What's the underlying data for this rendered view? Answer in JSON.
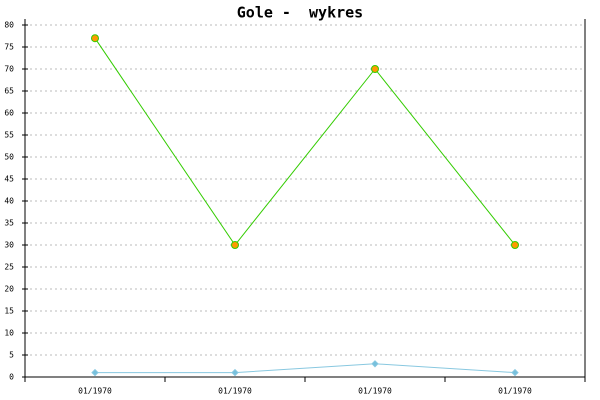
{
  "chart_data": {
    "type": "line",
    "title": "Gole -  wykres",
    "categories": [
      "01/1970",
      "01/1970",
      "01/1970",
      "01/1970"
    ],
    "series": [
      {
        "color": "#33cc00",
        "marker_color": "#ff9900",
        "marker": "circle",
        "values": [
          77,
          30,
          70,
          30
        ]
      },
      {
        "color": "#88c8e0",
        "marker_color": "#77c0dd",
        "marker": "diamond",
        "values": [
          1,
          1,
          3,
          1
        ]
      }
    ],
    "ylim": [
      0,
      80
    ],
    "yticks": [
      0,
      5,
      10,
      15,
      20,
      25,
      30,
      35,
      40,
      45,
      50,
      55,
      60,
      65,
      70,
      75,
      80
    ],
    "grid": true
  }
}
